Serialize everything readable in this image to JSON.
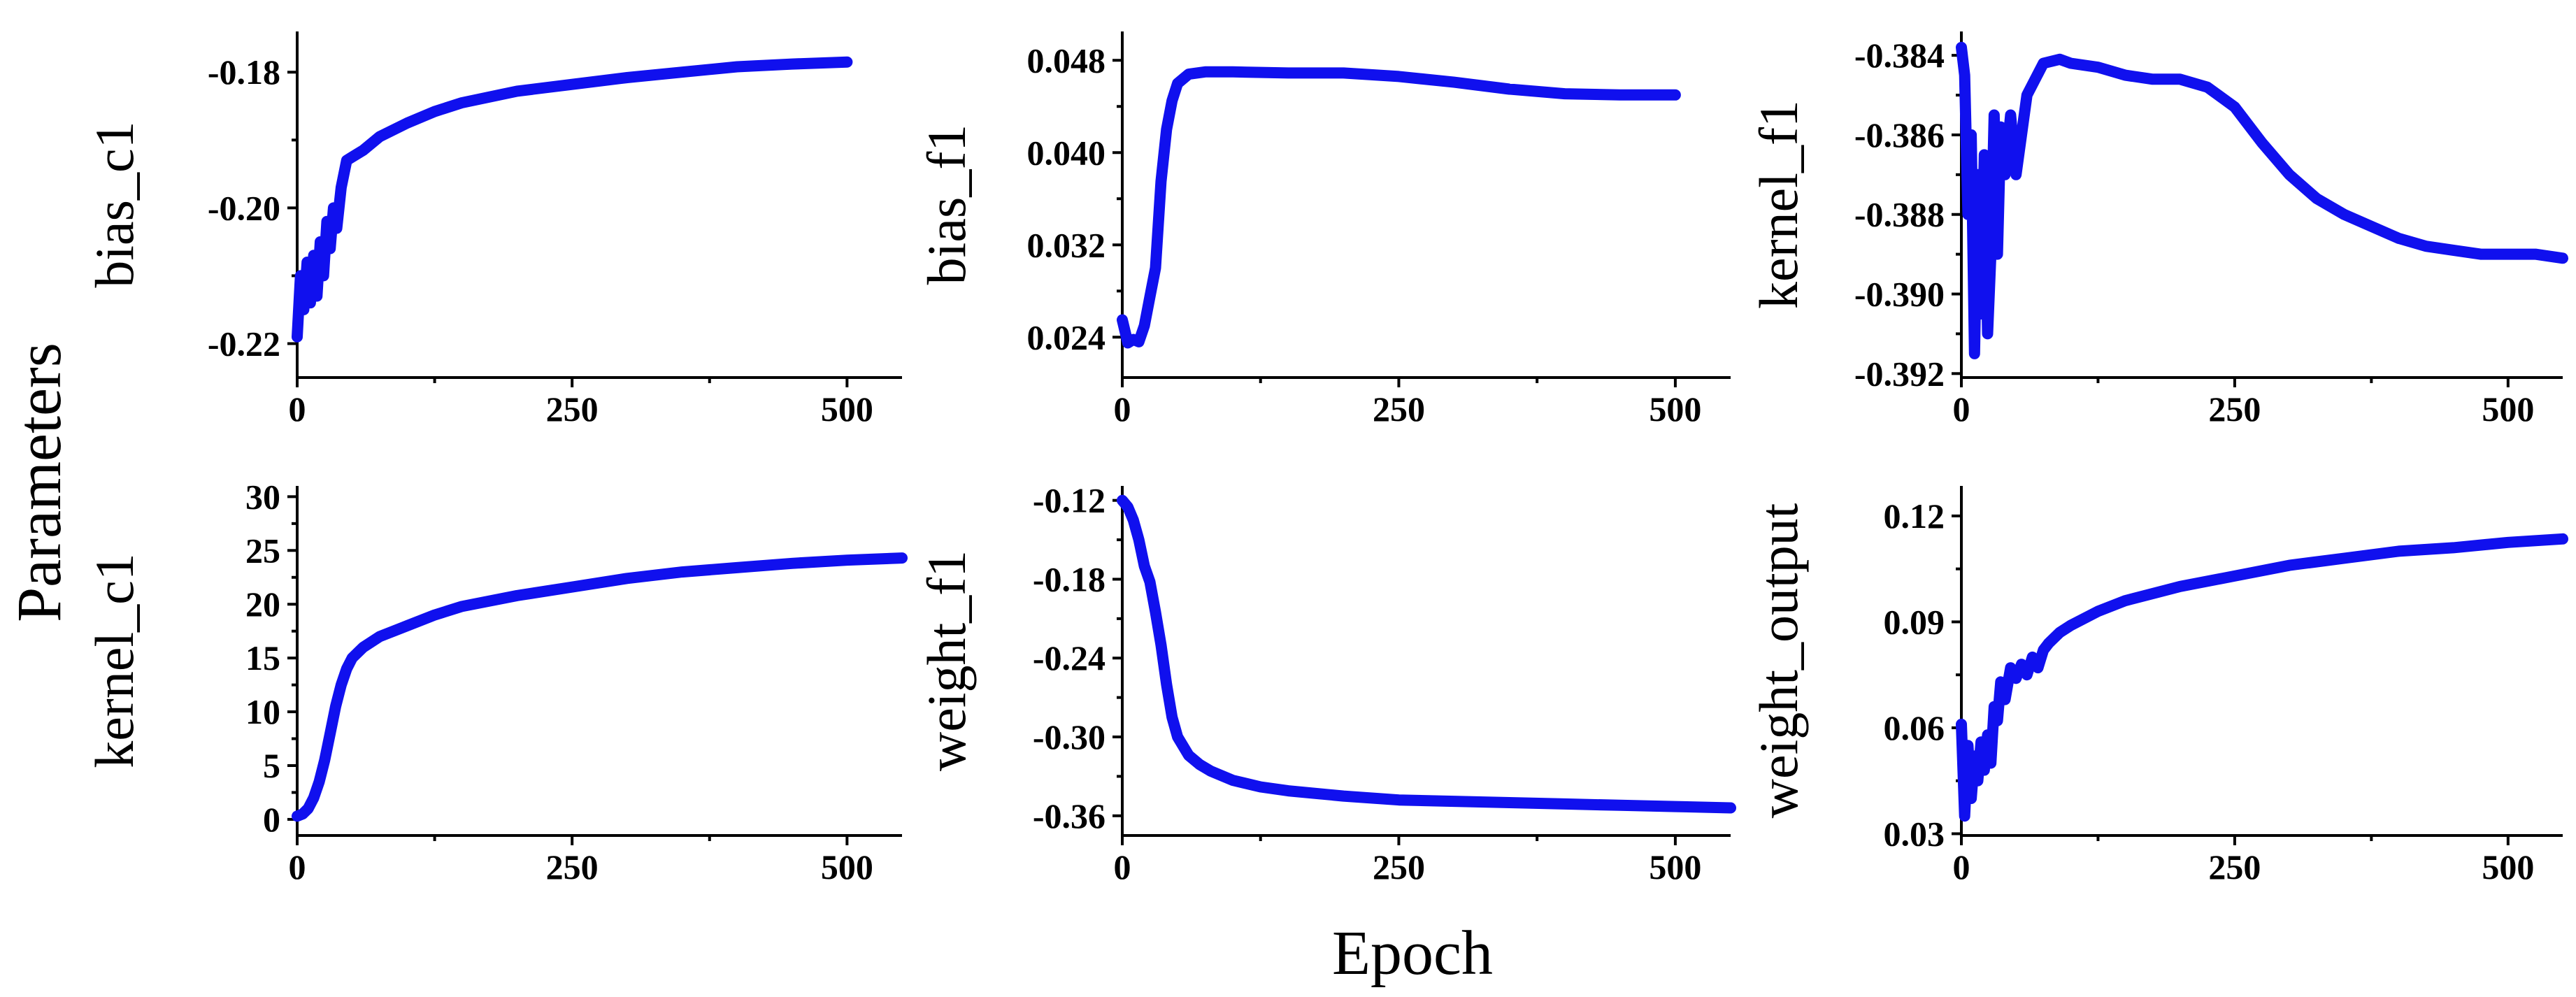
{
  "figure": {
    "ylabel": "Parameters",
    "xlabel": "Epoch",
    "line_color": "#1010ee"
  },
  "chart_data": [
    {
      "type": "line",
      "ylabel": "bias_c1",
      "xlim": [
        0,
        550
      ],
      "ylim": [
        -0.225,
        -0.174
      ],
      "yticks": [
        -0.22,
        -0.2,
        -0.18
      ],
      "ytick_labels": [
        "-0.22",
        "-0.20",
        "-0.18"
      ],
      "xticks": [
        0,
        250,
        500
      ],
      "xtick_labels": [
        "0",
        "250",
        "500"
      ],
      "series": [
        {
          "name": "bias_c1",
          "x": [
            0,
            3,
            6,
            9,
            12,
            15,
            18,
            21,
            24,
            27,
            30,
            33,
            36,
            40,
            45,
            50,
            60,
            75,
            100,
            125,
            150,
            200,
            250,
            300,
            350,
            400,
            450,
            500
          ],
          "y": [
            -0.219,
            -0.21,
            -0.215,
            -0.208,
            -0.214,
            -0.207,
            -0.213,
            -0.205,
            -0.21,
            -0.202,
            -0.206,
            -0.2,
            -0.203,
            -0.197,
            -0.193,
            -0.1925,
            -0.1915,
            -0.1895,
            -0.1875,
            -0.1858,
            -0.1845,
            -0.1828,
            -0.1818,
            -0.1808,
            -0.18,
            -0.1792,
            -0.1788,
            -0.1785
          ]
        }
      ]
    },
    {
      "type": "line",
      "ylabel": "bias_f1",
      "xlim": [
        0,
        550
      ],
      "ylim": [
        0.0205,
        0.0505
      ],
      "yticks": [
        0.024,
        0.032,
        0.04,
        0.048
      ],
      "ytick_labels": [
        "0.024",
        "0.032",
        "0.040",
        "0.048"
      ],
      "xticks": [
        0,
        250,
        500
      ],
      "xtick_labels": [
        "0",
        "250",
        "500"
      ],
      "series": [
        {
          "name": "bias_f1",
          "x": [
            0,
            5,
            10,
            15,
            20,
            25,
            30,
            35,
            40,
            45,
            50,
            60,
            75,
            100,
            150,
            200,
            250,
            300,
            350,
            400,
            450,
            500
          ],
          "y": [
            0.0255,
            0.0235,
            0.0238,
            0.0236,
            0.025,
            0.0275,
            0.03,
            0.0375,
            0.042,
            0.0445,
            0.046,
            0.0468,
            0.047,
            0.047,
            0.0469,
            0.0469,
            0.0466,
            0.0461,
            0.0455,
            0.0451,
            0.045,
            0.045
          ]
        }
      ]
    },
    {
      "type": "line",
      "ylabel": "kernel_f1",
      "xlim": [
        0,
        550
      ],
      "ylim": [
        -0.3921,
        -0.3834
      ],
      "yticks": [
        -0.392,
        -0.39,
        -0.388,
        -0.386,
        -0.384
      ],
      "ytick_labels": [
        "-0.392",
        "-0.390",
        "-0.388",
        "-0.386",
        "-0.384"
      ],
      "xticks": [
        0,
        250,
        500
      ],
      "xtick_labels": [
        "0",
        "250",
        "500"
      ],
      "series": [
        {
          "name": "kernel_f1",
          "x": [
            0,
            3,
            6,
            9,
            12,
            15,
            18,
            21,
            24,
            27,
            30,
            33,
            36,
            40,
            45,
            50,
            60,
            75,
            90,
            100,
            125,
            150,
            175,
            200,
            225,
            250,
            275,
            300,
            325,
            350,
            375,
            400,
            425,
            450,
            475,
            500,
            525,
            550
          ],
          "y": [
            -0.3838,
            -0.3845,
            -0.388,
            -0.386,
            -0.3915,
            -0.387,
            -0.3905,
            -0.3865,
            -0.391,
            -0.389,
            -0.3855,
            -0.389,
            -0.3858,
            -0.387,
            -0.3855,
            -0.387,
            -0.385,
            -0.3842,
            -0.3841,
            -0.3842,
            -0.3843,
            -0.3845,
            -0.3846,
            -0.3846,
            -0.3848,
            -0.3853,
            -0.3862,
            -0.387,
            -0.3876,
            -0.388,
            -0.3883,
            -0.3886,
            -0.3888,
            -0.3889,
            -0.389,
            -0.389,
            -0.389,
            -0.3891
          ]
        }
      ]
    },
    {
      "type": "line",
      "ylabel": "kernel_c1",
      "xlim": [
        0,
        550
      ],
      "ylim": [
        -1.5,
        31
      ],
      "yticks": [
        0,
        5,
        10,
        15,
        20,
        25,
        30
      ],
      "ytick_labels": [
        "0",
        "5",
        "10",
        "15",
        "20",
        "25",
        "30"
      ],
      "xticks": [
        0,
        250,
        500
      ],
      "xtick_labels": [
        "0",
        "250",
        "500"
      ],
      "series": [
        {
          "name": "kernel_c1",
          "x": [
            0,
            5,
            10,
            15,
            20,
            25,
            30,
            35,
            40,
            45,
            50,
            60,
            75,
            100,
            125,
            150,
            200,
            250,
            300,
            350,
            400,
            450,
            500,
            550
          ],
          "y": [
            0.3,
            0.5,
            1.0,
            2.0,
            3.5,
            5.5,
            8.0,
            10.5,
            12.5,
            14.0,
            15.0,
            16.0,
            17.0,
            18.0,
            19.0,
            19.8,
            20.8,
            21.6,
            22.4,
            23.0,
            23.4,
            23.8,
            24.1,
            24.3
          ]
        }
      ]
    },
    {
      "type": "line",
      "ylabel": "weight_f1",
      "xlim": [
        0,
        550
      ],
      "ylim": [
        -0.375,
        -0.109
      ],
      "yticks": [
        -0.36,
        -0.3,
        -0.24,
        -0.18,
        -0.12
      ],
      "ytick_labels": [
        "-0.36",
        "-0.30",
        "-0.24",
        "-0.18",
        "-0.12"
      ],
      "xticks": [
        0,
        250,
        500
      ],
      "xtick_labels": [
        "0",
        "250",
        "500"
      ],
      "series": [
        {
          "name": "weight_f1",
          "x": [
            0,
            5,
            10,
            15,
            20,
            25,
            30,
            35,
            40,
            45,
            50,
            60,
            70,
            80,
            100,
            125,
            150,
            200,
            250,
            300,
            350,
            400,
            450,
            500,
            550
          ],
          "y": [
            -0.12,
            -0.125,
            -0.135,
            -0.15,
            -0.17,
            -0.182,
            -0.205,
            -0.23,
            -0.26,
            -0.285,
            -0.3,
            -0.314,
            -0.321,
            -0.326,
            -0.333,
            -0.338,
            -0.341,
            -0.345,
            -0.348,
            -0.349,
            -0.35,
            -0.351,
            -0.352,
            -0.353,
            -0.354
          ]
        }
      ]
    },
    {
      "type": "line",
      "ylabel": "weight_output",
      "xlim": [
        0,
        550
      ],
      "ylim": [
        0.0295,
        0.1285
      ],
      "yticks": [
        0.03,
        0.06,
        0.09,
        0.12
      ],
      "ytick_labels": [
        "0.03",
        "0.06",
        "0.09",
        "0.12"
      ],
      "xticks": [
        0,
        250,
        500
      ],
      "xtick_labels": [
        "0",
        "250",
        "500"
      ],
      "series": [
        {
          "name": "weight_output",
          "x": [
            0,
            3,
            6,
            9,
            12,
            15,
            18,
            21,
            24,
            27,
            30,
            33,
            36,
            40,
            45,
            50,
            55,
            60,
            65,
            70,
            75,
            80,
            90,
            100,
            125,
            150,
            175,
            200,
            250,
            300,
            350,
            400,
            450,
            500,
            550
          ],
          "y": [
            0.061,
            0.035,
            0.055,
            0.04,
            0.052,
            0.045,
            0.056,
            0.048,
            0.058,
            0.05,
            0.066,
            0.062,
            0.073,
            0.068,
            0.077,
            0.074,
            0.078,
            0.075,
            0.08,
            0.077,
            0.082,
            0.084,
            0.087,
            0.089,
            0.093,
            0.096,
            0.098,
            0.1,
            0.103,
            0.106,
            0.108,
            0.11,
            0.111,
            0.1125,
            0.1135
          ]
        }
      ]
    }
  ]
}
